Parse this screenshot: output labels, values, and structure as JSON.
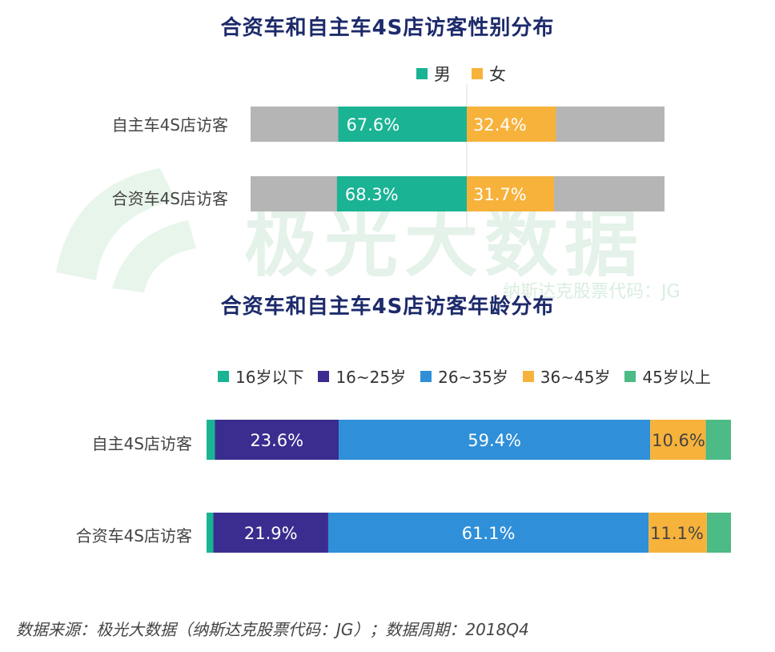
{
  "watermark": {
    "brand": "极光大数据",
    "stock": "纳斯达克股票代码：JG"
  },
  "chart_data": [
    {
      "type": "bar",
      "orientation": "horizontal",
      "stacked": true,
      "title": "合资车和自主车4S店访客性别分布",
      "categories": [
        "自主车4S店访客",
        "合资车4S店访客"
      ],
      "series": [
        {
          "name": "男",
          "color": "#1ab394",
          "values": [
            67.6,
            68.3
          ]
        },
        {
          "name": "女",
          "color": "#f7b23b",
          "values": [
            32.4,
            31.7
          ]
        }
      ],
      "value_labels": [
        [
          "67.6%",
          "32.4%"
        ],
        [
          "68.3%",
          "31.7%"
        ]
      ],
      "legend": [
        "男",
        "女"
      ],
      "legend_position": "top-right",
      "background_bar_color": "#b5b5b5"
    },
    {
      "type": "bar",
      "orientation": "horizontal",
      "stacked": true,
      "title": "合资车和自主车4S店访客年龄分布",
      "categories": [
        "自主4S店访客",
        "合资车4S店访客"
      ],
      "series": [
        {
          "name": "16岁以下",
          "color": "#1ab394",
          "values": [
            1.6,
            1.3
          ]
        },
        {
          "name": "16~25岁",
          "color": "#3a2d8f",
          "values": [
            23.6,
            21.9
          ]
        },
        {
          "name": "26~35岁",
          "color": "#2f8fd8",
          "values": [
            59.4,
            61.1
          ]
        },
        {
          "name": "36~45岁",
          "color": "#f7b23b",
          "values": [
            10.6,
            11.1
          ]
        },
        {
          "name": "45岁以上",
          "color": "#4cbb85",
          "values": [
            4.8,
            4.6
          ]
        }
      ],
      "value_labels": [
        [
          "",
          "23.6%",
          "59.4%",
          "10.6%",
          ""
        ],
        [
          "",
          "21.9%",
          "61.1%",
          "11.1%",
          ""
        ]
      ],
      "legend": [
        "16岁以下",
        "16~25岁",
        "26~35岁",
        "36~45岁",
        "45岁以上"
      ],
      "legend_position": "top"
    }
  ],
  "footer": {
    "source": "数据来源：极光大数据（纳斯达克股票代码：JG）；数据周期：2018Q4"
  }
}
